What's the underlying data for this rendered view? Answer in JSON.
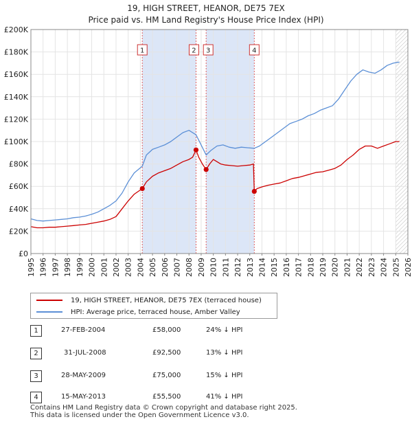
{
  "title": "19, HIGH STREET, HEANOR, DE75 7EX",
  "subtitle": "Price paid vs. HM Land Registry's House Price Index (HPI)",
  "colors": {
    "property": "#cc0000",
    "hpi": "#5b8fd6",
    "shade": "#dce6f7",
    "grid": "#e4e4e4"
  },
  "chart_data": {
    "type": "line",
    "xlim": [
      1995,
      2026
    ],
    "ylim": [
      0,
      200000
    ],
    "yticks": [
      0,
      20000,
      40000,
      60000,
      80000,
      100000,
      120000,
      140000,
      160000,
      180000,
      200000
    ],
    "ytick_labels": [
      "£0",
      "£20K",
      "£40K",
      "£60K",
      "£80K",
      "£100K",
      "£120K",
      "£140K",
      "£160K",
      "£180K",
      "£200K"
    ],
    "xticks": [
      1995,
      1996,
      1997,
      1998,
      1999,
      2000,
      2001,
      2002,
      2003,
      2004,
      2005,
      2006,
      2007,
      2008,
      2009,
      2010,
      2011,
      2012,
      2013,
      2014,
      2015,
      2016,
      2017,
      2018,
      2019,
      2020,
      2021,
      2022,
      2023,
      2024,
      2025,
      2026
    ],
    "xtick_labels": [
      "1995",
      "1996",
      "1997",
      "1998",
      "1999",
      "2000",
      "2001",
      "2002",
      "2003",
      "2004",
      "2005",
      "2006",
      "2007",
      "2008",
      "2009",
      "2010",
      "2011",
      "2012",
      "2013",
      "2014",
      "2015",
      "2016",
      "2017",
      "2018",
      "2019",
      "2020",
      "2021",
      "2022",
      "2023",
      "2024",
      "2025",
      "2026"
    ],
    "shaded_ranges": [
      [
        2004.16,
        2008.58
      ],
      [
        2009.41,
        2013.37
      ]
    ],
    "hatched_from": 2025.0,
    "series": [
      {
        "name": "19, HIGH STREET, HEANOR, DE75 7EX (terraced house)",
        "color": "#cc0000",
        "x": [
          1995.0,
          1995.5,
          1996.0,
          1996.5,
          1997.0,
          1997.5,
          1998.0,
          1998.5,
          1999.0,
          1999.5,
          2000.0,
          2000.5,
          2001.0,
          2001.5,
          2002.0,
          2002.5,
          2003.0,
          2003.5,
          2004.16,
          2004.5,
          2005.0,
          2005.5,
          2006.0,
          2006.5,
          2007.0,
          2007.5,
          2008.0,
          2008.3,
          2008.58,
          2008.8,
          2009.1,
          2009.41,
          2009.7,
          2010.0,
          2010.3,
          2010.6,
          2011.0,
          2011.5,
          2012.0,
          2012.5,
          2013.0,
          2013.3,
          2013.37,
          2013.6,
          2014.0,
          2014.5,
          2015.0,
          2015.5,
          2016.0,
          2016.5,
          2017.0,
          2017.5,
          2018.0,
          2018.5,
          2019.0,
          2019.5,
          2020.0,
          2020.5,
          2021.0,
          2021.5,
          2022.0,
          2022.5,
          2023.0,
          2023.5,
          2024.0,
          2024.5,
          2025.0,
          2025.3
        ],
        "values": [
          24000,
          23000,
          23000,
          23500,
          23500,
          24000,
          24500,
          25000,
          25500,
          26000,
          27000,
          28000,
          29000,
          30500,
          33000,
          40000,
          47000,
          53000,
          58000,
          64000,
          69000,
          72000,
          74000,
          76000,
          79000,
          82000,
          84000,
          86000,
          92500,
          86000,
          80000,
          75000,
          80000,
          84000,
          82000,
          80000,
          79000,
          78500,
          78000,
          78500,
          79000,
          80000,
          55500,
          58000,
          59500,
          61000,
          62000,
          63000,
          65000,
          67000,
          68000,
          69500,
          71000,
          72500,
          73000,
          74500,
          76000,
          79000,
          84000,
          88000,
          93000,
          96000,
          96000,
          94000,
          96000,
          98000,
          100000,
          100000
        ]
      },
      {
        "name": "HPI: Average price, terraced house, Amber Valley",
        "color": "#5b8fd6",
        "x": [
          1995.0,
          1995.5,
          1996.0,
          1996.5,
          1997.0,
          1997.5,
          1998.0,
          1998.5,
          1999.0,
          1999.5,
          2000.0,
          2000.5,
          2001.0,
          2001.5,
          2002.0,
          2002.5,
          2003.0,
          2003.5,
          2004.16,
          2004.5,
          2005.0,
          2005.5,
          2006.0,
          2006.5,
          2007.0,
          2007.5,
          2008.0,
          2008.58,
          2009.0,
          2009.41,
          2009.8,
          2010.3,
          2010.8,
          2011.3,
          2011.8,
          2012.3,
          2012.8,
          2013.37,
          2013.8,
          2014.3,
          2014.8,
          2015.3,
          2015.8,
          2016.3,
          2016.8,
          2017.3,
          2017.8,
          2018.3,
          2018.8,
          2019.3,
          2019.8,
          2020.3,
          2020.8,
          2021.3,
          2021.8,
          2022.3,
          2022.8,
          2023.3,
          2023.8,
          2024.3,
          2024.8,
          2025.3
        ],
        "values": [
          31000,
          29500,
          29000,
          29500,
          30000,
          30500,
          31000,
          32000,
          32500,
          33500,
          35000,
          37000,
          40000,
          43000,
          47000,
          54000,
          64000,
          72000,
          78000,
          88000,
          93000,
          95000,
          97000,
          100000,
          104000,
          108000,
          110000,
          106000,
          97000,
          88000,
          92000,
          96000,
          97000,
          95000,
          94000,
          95000,
          94500,
          94000,
          96000,
          100000,
          104000,
          108000,
          112000,
          116000,
          118000,
          120000,
          123000,
          125000,
          128000,
          130000,
          132000,
          138000,
          146000,
          154000,
          160000,
          164000,
          162000,
          161000,
          164000,
          168000,
          170000,
          171000
        ]
      }
    ],
    "sales": [
      {
        "n": "1",
        "x": 2004.16,
        "value": 58000
      },
      {
        "n": "2",
        "x": 2008.58,
        "value": 92500
      },
      {
        "n": "3",
        "x": 2009.41,
        "value": 75000
      },
      {
        "n": "4",
        "x": 2013.37,
        "value": 55500
      }
    ]
  },
  "legend": {
    "property": "19, HIGH STREET, HEANOR, DE75 7EX (terraced house)",
    "hpi": "HPI: Average price, terraced house, Amber Valley"
  },
  "sales_table": [
    {
      "n": "1",
      "date": "27-FEB-2004",
      "price": "£58,000",
      "hpi": "24% ↓ HPI"
    },
    {
      "n": "2",
      "date": "31-JUL-2008",
      "price": "£92,500",
      "hpi": "13% ↓ HPI"
    },
    {
      "n": "3",
      "date": "28-MAY-2009",
      "price": "£75,000",
      "hpi": "15% ↓ HPI"
    },
    {
      "n": "4",
      "date": "15-MAY-2013",
      "price": "£55,500",
      "hpi": "41% ↓ HPI"
    }
  ],
  "footer": {
    "line1": "Contains HM Land Registry data © Crown copyright and database right 2025.",
    "line2": "This data is licensed under the Open Government Licence v3.0."
  }
}
